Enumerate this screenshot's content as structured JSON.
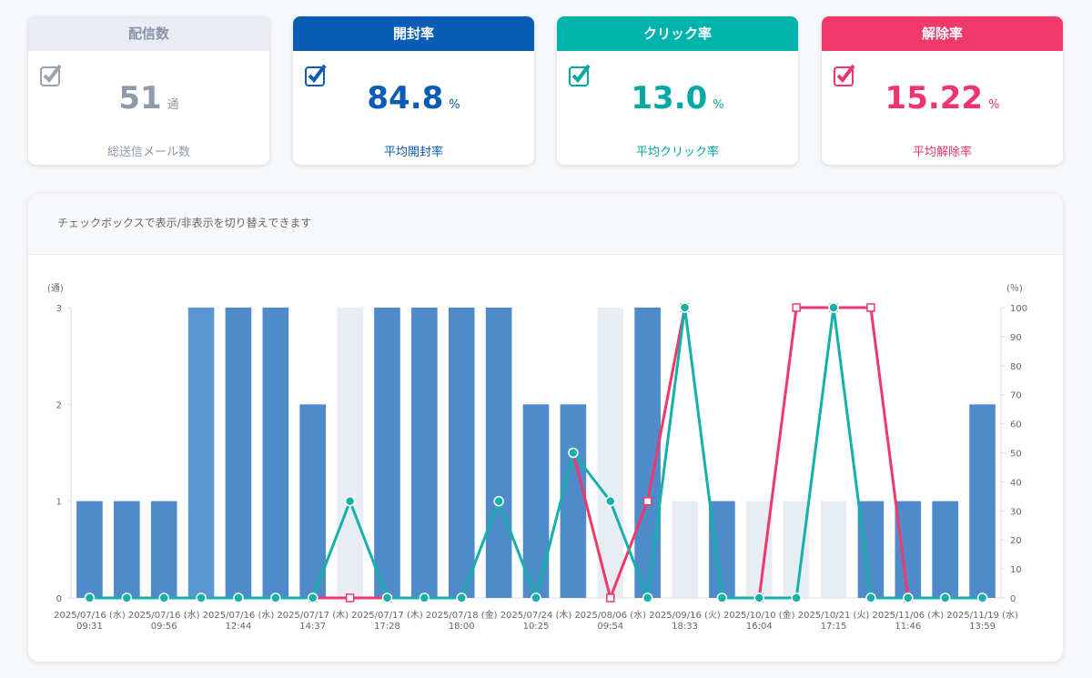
{
  "cards": [
    {
      "title": "配信数",
      "value": "51",
      "unit": "通",
      "caption": "総送信メール数"
    },
    {
      "title": "開封率",
      "value": "84.8",
      "unit": "%",
      "caption": "平均開封率"
    },
    {
      "title": "クリック率",
      "value": "13.0",
      "unit": "%",
      "caption": "平均クリック率"
    },
    {
      "title": "解除率",
      "value": "15.22",
      "unit": "%",
      "caption": "平均解除率"
    }
  ],
  "panel": {
    "note": "チェックボックスで表示/非表示を切り替えできます"
  },
  "chart_data": {
    "type": "bar-line",
    "y_unit": "(通)",
    "y2_unit": "(％)",
    "categories": [
      "2025/07/16 (水)\n09:31",
      null,
      "2025/07/16 (水)\n09:56",
      null,
      "2025/07/16 (水)\n12:44",
      null,
      "2025/07/17 (木)\n14:37",
      null,
      "2025/07/17 (木)\n17:28",
      null,
      "2025/07/18 (金)\n18:00",
      null,
      "2025/07/24 (木)\n10:25",
      null,
      "2025/08/06 (水)\n09:54",
      null,
      "2025/09/16 (火)\n18:33",
      null,
      "2025/10/10 (金)\n16:04",
      null,
      "2025/10/21 (火)\n17:15",
      null,
      "2025/11/06 (木)\n11:46",
      null,
      "2025/11/19 (水)\n13:59"
    ],
    "series": [
      {
        "type": "bar",
        "values": [
          1,
          1,
          1,
          3,
          3,
          3,
          2,
          3,
          3,
          3,
          3,
          3,
          2,
          2,
          3,
          3,
          1,
          1,
          1,
          1,
          1,
          1,
          1,
          1,
          2
        ],
        "colors": [
          "#4f8bcb",
          "#4f8bcb",
          "#4f8bcb",
          "#5b97d2",
          "#4f8bcb",
          "#4f8bcb",
          "#4f8bcb",
          "#e8edf4",
          "#4f8bcb",
          "#4f8bcb",
          "#4f8bcb",
          "#4f8bcb",
          "#4f8bcb",
          "#4f8bcb",
          "#e8edf4",
          "#4f8bcb",
          "#e8edf4",
          "#4f8bcb",
          "#e8edf4",
          "#e8edf4",
          "#e8edf4",
          "#4f8bcb",
          "#4f8bcb",
          "#4f8bcb",
          "#4f8bcb"
        ]
      },
      {
        "type": "line",
        "axis": "y2",
        "color": "#f0386b",
        "marker": "square",
        "values": [
          null,
          null,
          null,
          null,
          null,
          null,
          0,
          0,
          0,
          null,
          null,
          null,
          null,
          50,
          0,
          33.3,
          100,
          null,
          0,
          100,
          100,
          100,
          0,
          null,
          null
        ]
      },
      {
        "type": "line",
        "axis": "y2",
        "color": "#14b1aa",
        "marker": "circle",
        "values": [
          0,
          0,
          0,
          0,
          0,
          0,
          0,
          33.3,
          0,
          0,
          0,
          33.3,
          0,
          50,
          33.3,
          0,
          100,
          0,
          0,
          0,
          100,
          0,
          0,
          0,
          0
        ]
      }
    ],
    "ylim": [
      0,
      3
    ],
    "yticks": [
      0,
      1,
      2,
      3
    ],
    "y2lim": [
      0,
      100
    ],
    "y2ticks": [
      0,
      10,
      20,
      30,
      40,
      50,
      60,
      70,
      80,
      90,
      100
    ],
    "grid": false
  }
}
